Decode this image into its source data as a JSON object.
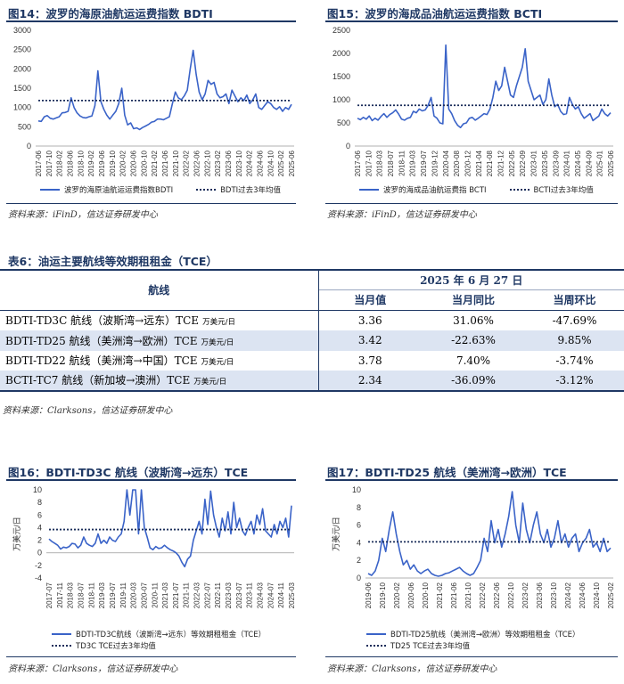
{
  "fig14": {
    "title": "图14：波罗的海原油航运运费指数 BDTI",
    "legend_series": "波罗的海原油航运运费指数BDTI",
    "legend_avg": "BDTI过去3年均值",
    "source": "资料来源：iFinD，信达证券研发中心"
  },
  "fig15": {
    "title": "图15：波罗的海成品油航运运费指数 BCTI",
    "legend_series": "波罗的海成品油航运费指    BCTI",
    "legend_avg": "BCTI过去3年均值",
    "source": "资料来源：iFinD，信达证券研发中心"
  },
  "table6": {
    "title": "表6：油运主要航线等效期租租金（TCE）",
    "header_route": "航线",
    "header_date": "2025 年 6 月 27 日",
    "col_current": "当月值",
    "col_yoy": "当月同比",
    "col_wow": "当周环比",
    "rows": [
      {
        "route": "BDTI-TD3C 航线（波斯湾→远东）TCE",
        "unit": "万美元/日",
        "current": "3.36",
        "yoy": "31.06%",
        "wow": "-47.69%"
      },
      {
        "route": "BDTI-TD25 航线（美洲湾→欧洲）TCE",
        "unit": "万美元/日",
        "current": "3.42",
        "yoy": "-22.63%",
        "wow": "9.85%"
      },
      {
        "route": "BDTI-TD22 航线（美洲湾→中国）TCE",
        "unit": "万美元/日",
        "current": "3.78",
        "yoy": "7.40%",
        "wow": "-3.74%"
      },
      {
        "route": "BCTI-TC7 航线（新加坡→澳洲）TCE",
        "unit": "万美元/日",
        "current": "2.34",
        "yoy": "-36.09%",
        "wow": "-3.12%"
      }
    ],
    "source": "资料来源：Clarksons，信达证券研发中心"
  },
  "fig16": {
    "title": "图16：BDTI-TD3C 航线（波斯湾→远东）TCE",
    "legend_series": "BDTI-TD3C航线（波斯湾→远东）等效期租租金（TCE）",
    "legend_avg": "TD3C TCE过去3年均值",
    "source": "资料来源：Clarksons，信达证券研发中心"
  },
  "fig17": {
    "title": "图17：BDTI-TD25 航线（美洲湾→欧洲）TCE",
    "legend_series": "BDTI-TD25航线（美洲湾→欧洲）等效期租租金（TCE）",
    "legend_avg": "TD25 TCE过去3年均值",
    "source": "资料来源：Clarksons，信达证券研发中心"
  },
  "colors": {
    "series": "#3a63c8",
    "average": "#1a2d5a",
    "accent": "#1f3864",
    "row_shade": "#dce4f2"
  },
  "chart_data": [
    {
      "id": "fig14",
      "type": "line",
      "title": "波罗的海原油航运运费指数 BDTI",
      "ylim": [
        0,
        3000
      ],
      "yticks": [
        0,
        500,
        1000,
        1500,
        2000,
        2500,
        3000
      ],
      "x_labels": [
        "2017-06",
        "2017-10",
        "2018-02",
        "2018-06",
        "2018-10",
        "2019-02",
        "2019-06",
        "2019-10",
        "2020-02",
        "2020-06",
        "2020-10",
        "2021-02",
        "2021-06",
        "2021-10",
        "2022-02",
        "2022-06",
        "2022-10",
        "2023-02",
        "2023-06",
        "2023-10",
        "2024-02",
        "2024-06",
        "2024-10",
        "2025-02",
        "2025-06"
      ],
      "average": 1180,
      "series": [
        {
          "name": "BDTI",
          "values": [
            650,
            640,
            760,
            790,
            720,
            700,
            730,
            760,
            860,
            870,
            900,
            1250,
            1000,
            860,
            780,
            740,
            730,
            760,
            780,
            1050,
            1950,
            1150,
            950,
            800,
            700,
            800,
            900,
            1100,
            1500,
            800,
            550,
            600,
            450,
            470,
            430,
            480,
            520,
            560,
            620,
            640,
            700,
            700,
            680,
            720,
            760,
            1100,
            1400,
            1250,
            1200,
            1300,
            1450,
            2000,
            2480,
            1850,
            1400,
            1200,
            1350,
            1700,
            1600,
            1650,
            1350,
            1250,
            1280,
            1350,
            1100,
            1450,
            1300,
            1150,
            1250,
            1180,
            1320,
            1100,
            1200,
            1350,
            1000,
            950,
            1050,
            1150,
            1100,
            1000,
            950,
            1020,
            900,
            1000,
            950,
            1080
          ]
        }
      ]
    },
    {
      "id": "fig15",
      "type": "line",
      "title": "波罗的海成品油航运运费指数 BCTI",
      "ylim": [
        0,
        2500
      ],
      "yticks": [
        0,
        500,
        1000,
        1500,
        2000,
        2500
      ],
      "x_labels": [
        "2017-06",
        "2017-10",
        "2018-03",
        "2018-07",
        "2018-11",
        "2019-03",
        "2019-07",
        "2019-12",
        "2020-04",
        "2020-08",
        "2020-12",
        "2021-04",
        "2021-08",
        "2021-12",
        "2022-05",
        "2022-09",
        "2023-01",
        "2023-05",
        "2023-09",
        "2024-01",
        "2024-05",
        "2024-09",
        "2025-01",
        "2025-06"
      ],
      "average": 880,
      "series": [
        {
          "name": "BCTI",
          "values": [
            600,
            570,
            620,
            580,
            650,
            550,
            600,
            560,
            640,
            700,
            620,
            680,
            720,
            780,
            690,
            580,
            560,
            600,
            620,
            750,
            720,
            800,
            760,
            780,
            880,
            1050,
            650,
            600,
            500,
            480,
            2180,
            800,
            700,
            550,
            450,
            400,
            480,
            500,
            600,
            620,
            560,
            600,
            650,
            700,
            680,
            800,
            1050,
            1400,
            1200,
            1300,
            1700,
            1400,
            1100,
            1050,
            1300,
            1500,
            1700,
            2100,
            1400,
            1200,
            1000,
            1050,
            1100,
            900,
            1000,
            1450,
            1100,
            850,
            900,
            750,
            680,
            700,
            1050,
            900,
            800,
            850,
            700,
            600,
            650,
            700,
            550,
            600,
            650,
            800,
            700,
            650,
            720
          ]
        }
      ]
    },
    {
      "id": "fig16",
      "type": "line",
      "title": "BDTI-TD3C 航线（波斯湾→远东）TCE",
      "ylabel": "万美元/日",
      "ylim": [
        -4,
        10
      ],
      "yticks": [
        -4,
        -2,
        0,
        2,
        4,
        6,
        8,
        10
      ],
      "x_labels": [
        "2017-07",
        "2017-11",
        "2018-03",
        "2018-07",
        "2018-11",
        "2019-03",
        "2019-07",
        "2019-11",
        "2020-03",
        "2020-07",
        "2020-11",
        "2021-03",
        "2021-07",
        "2021-11",
        "2022-03",
        "2022-07",
        "2022-11",
        "2023-03",
        "2023-07",
        "2023-11",
        "2024-03",
        "2024-07",
        "2024-11",
        "2025-03"
      ],
      "average": 3.7,
      "series": [
        {
          "name": "TD3C TCE",
          "values": [
            2.2,
            1.8,
            1.5,
            1.2,
            0.6,
            0.9,
            0.8,
            1.0,
            1.5,
            1.4,
            0.8,
            1.2,
            2.5,
            1.5,
            1.2,
            1.0,
            1.5,
            3.0,
            1.5,
            2.0,
            1.5,
            2.5,
            2.0,
            1.8,
            2.5,
            3.0,
            5.0,
            10,
            6.0,
            10,
            10,
            3.0,
            10,
            4.0,
            2.5,
            0.8,
            0.5,
            1.0,
            0.7,
            0.8,
            1.2,
            0.8,
            0.5,
            0.3,
            0.0,
            -0.5,
            -1.5,
            -2.2,
            -1.0,
            -0.5,
            2.0,
            3.5,
            5.0,
            3.0,
            8.5,
            4.5,
            9.8,
            6.0,
            4.0,
            2.5,
            5.5,
            3.5,
            6.5,
            3.0,
            8.0,
            4.0,
            5.5,
            3.5,
            2.8,
            4.0,
            5.0,
            3.0,
            6.0,
            4.5,
            7.0,
            3.5,
            3.0,
            2.5,
            4.5,
            3.0,
            5.0,
            4.0,
            5.5,
            2.5,
            7.5
          ]
        }
      ]
    },
    {
      "id": "fig17",
      "type": "line",
      "title": "BDTI-TD25 航线（美洲湾→欧洲）TCE",
      "ylabel": "万美元/日",
      "ylim": [
        0,
        10
      ],
      "yticks": [
        0,
        2,
        4,
        6,
        8,
        10
      ],
      "x_labels": [
        "2019-06",
        "2019-10",
        "2020-02",
        "2020-06",
        "2020-10",
        "2021-02",
        "2021-06",
        "2021-10",
        "2022-02",
        "2022-06",
        "2022-10",
        "2023-02",
        "2023-06",
        "2023-10",
        "2024-02",
        "2024-06",
        "2024-10",
        "2025-02"
      ],
      "average": 4.1,
      "series": [
        {
          "name": "TD25 TCE",
          "values": [
            0.5,
            0.3,
            0.8,
            2.0,
            4.5,
            3.0,
            5.5,
            7.5,
            5.0,
            3.0,
            1.5,
            2.0,
            1.0,
            1.5,
            0.8,
            0.5,
            0.8,
            1.0,
            0.5,
            0.3,
            0.2,
            0.3,
            0.5,
            0.6,
            0.8,
            1.0,
            1.2,
            0.8,
            0.5,
            0.3,
            0.5,
            1.2,
            2.0,
            4.5,
            3.0,
            6.5,
            4.0,
            5.5,
            3.5,
            5.0,
            7.0,
            9.8,
            6.0,
            4.0,
            8.5,
            5.5,
            4.0,
            6.0,
            7.5,
            5.0,
            4.0,
            5.5,
            3.5,
            4.5,
            6.5,
            4.0,
            5.0,
            3.5,
            4.5,
            5.0,
            3.0,
            4.0,
            4.5,
            5.5,
            3.5,
            4.0,
            3.0,
            4.5,
            3.0,
            3.4
          ]
        }
      ]
    }
  ]
}
